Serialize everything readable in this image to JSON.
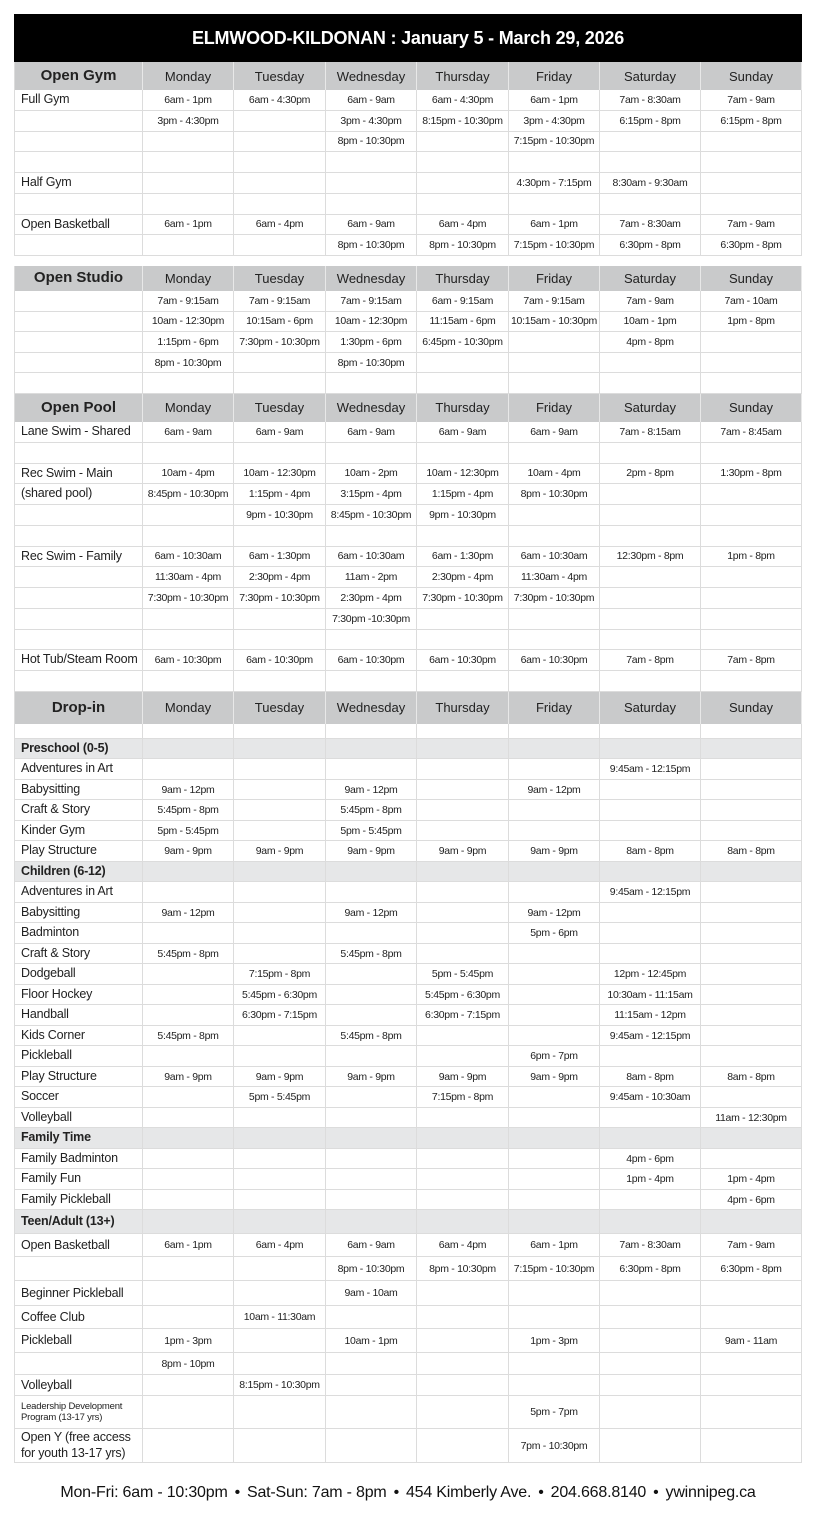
{
  "title": "ELMWOOD-KILDONAN : January 5 - March 29, 2026",
  "days": [
    "Monday",
    "Tuesday",
    "Wednesday",
    "Thursday",
    "Friday",
    "Saturday",
    "Sunday"
  ],
  "sections": [
    {
      "title": "Open Gym",
      "rows": [
        {
          "label": "Full Gym",
          "times": [
            "6am - 1pm",
            "6am - 4:30pm",
            "6am - 9am",
            "6am - 4:30pm",
            "6am - 1pm",
            "7am - 8:30am",
            "7am - 9am"
          ]
        },
        {
          "label": "",
          "times": [
            "3pm - 4:30pm",
            "",
            "3pm - 4:30pm",
            "8:15pm - 10:30pm",
            "3pm - 4:30pm",
            "6:15pm - 8pm",
            "6:15pm - 8pm"
          ]
        },
        {
          "label": "",
          "times": [
            "",
            "",
            "8pm - 10:30pm",
            "",
            "7:15pm - 10:30pm",
            "",
            ""
          ]
        },
        {
          "label": "",
          "times": [
            "",
            "",
            "",
            "",
            "",
            "",
            ""
          ]
        },
        {
          "label": "Half Gym",
          "times": [
            "",
            "",
            "",
            "",
            "4:30pm - 7:15pm",
            "8:30am - 9:30am",
            ""
          ]
        },
        {
          "label": "",
          "times": [
            "",
            "",
            "",
            "",
            "",
            "",
            ""
          ]
        },
        {
          "label": "Open Basketball",
          "times": [
            "6am - 1pm",
            "6am - 4pm",
            "6am - 9am",
            "6am - 4pm",
            "6am - 1pm",
            "7am - 8:30am",
            "7am - 9am"
          ]
        },
        {
          "label": "",
          "times": [
            "",
            "",
            "8pm - 10:30pm",
            "8pm - 10:30pm",
            "7:15pm - 10:30pm",
            "6:30pm - 8pm",
            "6:30pm - 8pm"
          ]
        }
      ]
    },
    {
      "title": "Open Studio",
      "rows": [
        {
          "label": "",
          "times": [
            "7am - 9:15am",
            "7am - 9:15am",
            "7am - 9:15am",
            "6am - 9:15am",
            "7am - 9:15am",
            "7am - 9am",
            "7am - 10am"
          ]
        },
        {
          "label": "",
          "times": [
            "10am - 12:30pm",
            "10:15am - 6pm",
            "10am - 12:30pm",
            "11:15am - 6pm",
            "10:15am - 10:30pm",
            "10am - 1pm",
            "1pm - 8pm"
          ]
        },
        {
          "label": "",
          "times": [
            "1:15pm - 6pm",
            "7:30pm - 10:30pm",
            "1:30pm - 6pm",
            "6:45pm - 10:30pm",
            "",
            "4pm - 8pm",
            ""
          ]
        },
        {
          "label": "",
          "times": [
            "8pm - 10:30pm",
            "",
            "8pm - 10:30pm",
            "",
            "",
            "",
            ""
          ]
        },
        {
          "label": "",
          "times": [
            "",
            "",
            "",
            "",
            "",
            "",
            ""
          ]
        }
      ]
    },
    {
      "title": "Open Pool",
      "rows": [
        {
          "label": "Lane Swim - Shared",
          "times": [
            "6am - 9am",
            "6am - 9am",
            "6am - 9am",
            "6am - 9am",
            "6am - 9am",
            "7am - 8:15am",
            "7am - 8:45am"
          ]
        },
        {
          "label": "",
          "times": [
            "",
            "",
            "",
            "",
            "",
            "",
            ""
          ]
        },
        {
          "label": "Rec Swim - Main",
          "times": [
            "10am - 4pm",
            "10am - 12:30pm",
            "10am - 2pm",
            "10am - 12:30pm",
            "10am - 4pm",
            "2pm - 8pm",
            "1:30pm - 8pm"
          ]
        },
        {
          "label": "(shared pool)",
          "times": [
            "8:45pm - 10:30pm",
            "1:15pm - 4pm",
            "3:15pm - 4pm",
            "1:15pm - 4pm",
            "8pm - 10:30pm",
            "",
            ""
          ]
        },
        {
          "label": "",
          "times": [
            "",
            "9pm - 10:30pm",
            "8:45pm - 10:30pm",
            "9pm - 10:30pm",
            "",
            "",
            ""
          ]
        },
        {
          "label": "",
          "times": [
            "",
            "",
            "",
            "",
            "",
            "",
            ""
          ]
        },
        {
          "label": "Rec Swim - Family",
          "times": [
            "6am - 10:30am",
            "6am - 1:30pm",
            "6am - 10:30am",
            "6am - 1:30pm",
            "6am - 10:30am",
            "12:30pm - 8pm",
            "1pm - 8pm"
          ]
        },
        {
          "label": "",
          "times": [
            "11:30am - 4pm",
            "2:30pm - 4pm",
            "11am - 2pm",
            "2:30pm - 4pm",
            "11:30am - 4pm",
            "",
            ""
          ]
        },
        {
          "label": "",
          "times": [
            "7:30pm - 10:30pm",
            "7:30pm - 10:30pm",
            "2:30pm - 4pm",
            "7:30pm - 10:30pm",
            "7:30pm - 10:30pm",
            "",
            ""
          ]
        },
        {
          "label": "",
          "times": [
            "",
            "",
            "7:30pm -10:30pm",
            "",
            "",
            "",
            ""
          ]
        },
        {
          "label": "",
          "times": [
            "",
            "",
            "",
            "",
            "",
            "",
            ""
          ]
        },
        {
          "label": "Hot Tub/Steam Room",
          "times": [
            "6am - 10:30pm",
            "6am - 10:30pm",
            "6am - 10:30pm",
            "6am - 10:30pm",
            "6am - 10:30pm",
            "7am - 8pm",
            "7am - 8pm"
          ]
        },
        {
          "label": "",
          "times": [
            "",
            "",
            "",
            "",
            "",
            "",
            ""
          ]
        }
      ]
    },
    {
      "title": "Drop-in",
      "rows": [
        {
          "label": "",
          "times": [
            "",
            "",
            "",
            "",
            "",
            "",
            ""
          ]
        },
        {
          "label": "Preschool (0-5)",
          "sub": true,
          "times": [
            "",
            "",
            "",
            "",
            "",
            "",
            ""
          ]
        },
        {
          "label": "Adventures in Art",
          "times": [
            "",
            "",
            "",
            "",
            "",
            "9:45am - 12:15pm",
            ""
          ]
        },
        {
          "label": "Babysitting",
          "times": [
            "9am - 12pm",
            "",
            "9am - 12pm",
            "",
            "9am - 12pm",
            "",
            ""
          ]
        },
        {
          "label": "Craft & Story",
          "times": [
            "5:45pm - 8pm",
            "",
            "5:45pm - 8pm",
            "",
            "",
            "",
            ""
          ]
        },
        {
          "label": "Kinder Gym",
          "times": [
            "5pm - 5:45pm",
            "",
            "5pm - 5:45pm",
            "",
            "",
            "",
            ""
          ]
        },
        {
          "label": "Play Structure",
          "times": [
            "9am - 9pm",
            "9am - 9pm",
            "9am - 9pm",
            "9am - 9pm",
            "9am - 9pm",
            "8am - 8pm",
            "8am - 8pm"
          ]
        },
        {
          "label": "Children (6-12)",
          "sub": true,
          "times": [
            "",
            "",
            "",
            "",
            "",
            "",
            ""
          ]
        },
        {
          "label": "Adventures in Art",
          "times": [
            "",
            "",
            "",
            "",
            "",
            "9:45am - 12:15pm",
            ""
          ]
        },
        {
          "label": "Babysitting",
          "times": [
            "9am - 12pm",
            "",
            "9am - 12pm",
            "",
            "9am - 12pm",
            "",
            ""
          ]
        },
        {
          "label": "Badminton",
          "times": [
            "",
            "",
            "",
            "",
            "5pm - 6pm",
            "",
            ""
          ]
        },
        {
          "label": "Craft & Story",
          "times": [
            "5:45pm - 8pm",
            "",
            "5:45pm - 8pm",
            "",
            "",
            "",
            ""
          ]
        },
        {
          "label": "Dodgeball",
          "times": [
            "",
            "7:15pm - 8pm",
            "",
            "5pm - 5:45pm",
            "",
            "12pm - 12:45pm",
            ""
          ]
        },
        {
          "label": "Floor Hockey",
          "times": [
            "",
            "5:45pm - 6:30pm",
            "",
            "5:45pm - 6:30pm",
            "",
            "10:30am - 11:15am",
            ""
          ]
        },
        {
          "label": "Handball",
          "times": [
            "",
            "6:30pm - 7:15pm",
            "",
            "6:30pm - 7:15pm",
            "",
            "11:15am - 12pm",
            ""
          ]
        },
        {
          "label": "Kids Corner",
          "times": [
            "5:45pm - 8pm",
            "",
            "5:45pm - 8pm",
            "",
            "",
            "9:45am - 12:15pm",
            ""
          ]
        },
        {
          "label": "Pickleball",
          "times": [
            "",
            "",
            "",
            "",
            "6pm - 7pm",
            "",
            ""
          ]
        },
        {
          "label": "Play Structure",
          "times": [
            "9am - 9pm",
            "9am - 9pm",
            "9am - 9pm",
            "9am - 9pm",
            "9am - 9pm",
            "8am - 8pm",
            "8am - 8pm"
          ]
        },
        {
          "label": "Soccer",
          "times": [
            "",
            "5pm - 5:45pm",
            "",
            "7:15pm - 8pm",
            "",
            "9:45am - 10:30am",
            ""
          ]
        },
        {
          "label": "Volleyball",
          "times": [
            "",
            "",
            "",
            "",
            "",
            "",
            "11am - 12:30pm"
          ]
        },
        {
          "label": "Family Time",
          "sub": true,
          "times": [
            "",
            "",
            "",
            "",
            "",
            "",
            ""
          ]
        },
        {
          "label": "Family Badminton",
          "times": [
            "",
            "",
            "",
            "",
            "",
            "4pm - 6pm",
            ""
          ]
        },
        {
          "label": "Family Fun",
          "times": [
            "",
            "",
            "",
            "",
            "",
            "1pm - 4pm",
            "1pm - 4pm"
          ]
        },
        {
          "label": "Family Pickleball",
          "times": [
            "",
            "",
            "",
            "",
            "",
            "",
            "4pm - 6pm"
          ]
        },
        {
          "label": "Teen/Adult (13+)",
          "sub": true,
          "times": [
            "",
            "",
            "",
            "",
            "",
            "",
            ""
          ]
        },
        {
          "label": "Open Basketball",
          "times": [
            "6am - 1pm",
            "6am - 4pm",
            "6am - 9am",
            "6am - 4pm",
            "6am - 1pm",
            "7am - 8:30am",
            "7am - 9am"
          ]
        },
        {
          "label": "",
          "times": [
            "",
            "",
            "8pm - 10:30pm",
            "8pm - 10:30pm",
            "7:15pm - 10:30pm",
            "6:30pm - 8pm",
            "6:30pm - 8pm"
          ]
        },
        {
          "label": "Beginner Pickleball",
          "times": [
            "",
            "",
            "9am - 10am",
            "",
            "",
            "",
            ""
          ]
        },
        {
          "label": "Coffee Club",
          "times": [
            "",
            "10am - 11:30am",
            "",
            "",
            "",
            "",
            ""
          ]
        },
        {
          "label": "Pickleball",
          "times": [
            "1pm - 3pm",
            "",
            "10am - 1pm",
            "",
            "1pm - 3pm",
            "",
            "9am - 11am"
          ]
        },
        {
          "label": "",
          "times": [
            "8pm - 10pm",
            "",
            "",
            "",
            "",
            "",
            ""
          ]
        },
        {
          "label": "Volleyball",
          "times": [
            "",
            "8:15pm - 10:30pm",
            "",
            "",
            "",
            "",
            ""
          ]
        },
        {
          "label": "Leadership Development Program (13-17 yrs)",
          "times": [
            "",
            "",
            "",
            "",
            "5pm - 7pm",
            "",
            ""
          ]
        },
        {
          "label": "Open Y (free access for youth 13-17 yrs)",
          "times": [
            "",
            "",
            "",
            "",
            "7pm - 10:30pm",
            "",
            ""
          ]
        }
      ]
    }
  ],
  "footer": {
    "hours_weekday": "Mon-Fri: 6am - 10:30pm",
    "hours_weekend": "Sat-Sun: 7am - 8pm",
    "address": "454 Kimberly Ave.",
    "phone": "204.668.8140",
    "website": "ywinnipeg.ca",
    "separator": "•"
  }
}
